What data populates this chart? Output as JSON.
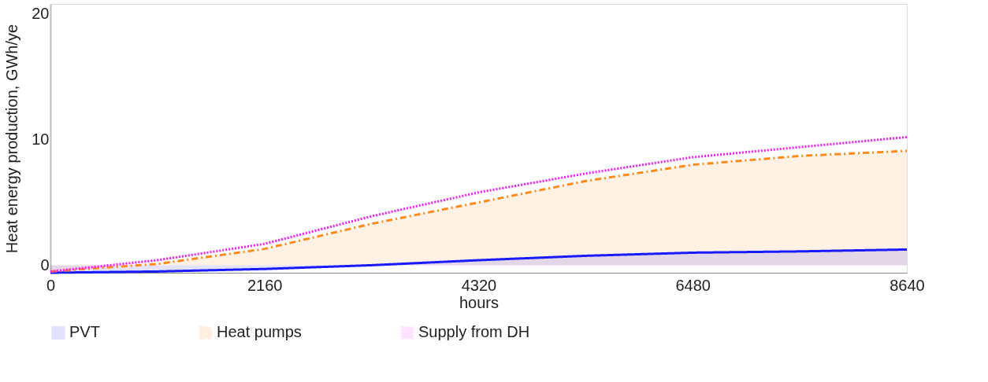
{
  "chart_data": {
    "type": "line",
    "xlabel": "hours",
    "ylabel": "Heat energy production, GWh/ye",
    "x": [
      0,
      1080,
      2160,
      3240,
      4320,
      5400,
      6480,
      7560,
      8640
    ],
    "series": [
      {
        "name": "PVT",
        "type": "area",
        "color": "#1a1aff",
        "line_style": "solid",
        "values": [
          -0.6,
          -0.5,
          -0.3,
          0,
          0.4,
          0.75,
          1.0,
          1.1,
          1.25
        ]
      },
      {
        "name": "Heat pumps",
        "type": "area",
        "color": "#ff8c1a",
        "line_style": "dashed",
        "values": [
          -0.5,
          0.1,
          1.3,
          3.3,
          5.0,
          6.7,
          8.0,
          8.7,
          9.1
        ]
      },
      {
        "name": "Supply from DH",
        "type": "line",
        "color": "#ff1aff",
        "line_style": "dotted",
        "values": [
          -0.5,
          0.4,
          1.7,
          3.9,
          5.8,
          7.3,
          8.6,
          9.4,
          10.2
        ]
      }
    ],
    "xlim": [
      0,
      8640
    ],
    "xticks": [
      0,
      2160,
      4320,
      6480,
      8640
    ],
    "ylim": [
      -0.6,
      20.8
    ],
    "yticks": [
      0,
      10,
      20
    ],
    "grid": false,
    "legend": "bottom",
    "marker": "none"
  }
}
